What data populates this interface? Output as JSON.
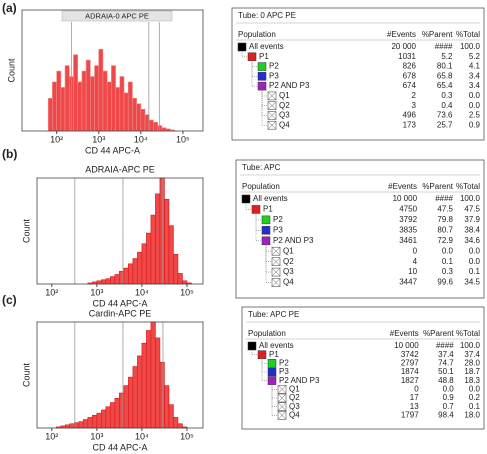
{
  "panel_labels": [
    "(a)",
    "(b)",
    "(c)"
  ],
  "chart_data": [
    {
      "type": "histogram",
      "title": "ADRAIA-0 APC PE",
      "xlabel": "CD 44 APC-A",
      "ylabel": "Count",
      "xscale": "log",
      "xlim": [
        15,
        300000
      ],
      "ylim": [
        0,
        100
      ],
      "xticks": [
        {
          "value": 100,
          "label": "10²"
        },
        {
          "value": 1000,
          "label": "10³"
        },
        {
          "value": 10000,
          "label": "10⁴"
        },
        {
          "value": 100000,
          "label": "10⁵"
        }
      ],
      "bins": [
        63,
        79,
        100,
        126,
        158,
        200,
        251,
        316,
        398,
        501,
        631,
        794,
        1000,
        1259,
        1585,
        1995,
        2512,
        3162,
        3981,
        5012,
        6310,
        7943,
        10000,
        12589,
        15849,
        19953,
        25119,
        31623,
        39811,
        50119,
        63096,
        79433,
        100000,
        125893,
        158489
      ],
      "counts": [
        30,
        45,
        55,
        40,
        60,
        50,
        70,
        45,
        55,
        65,
        50,
        60,
        75,
        55,
        45,
        60,
        40,
        50,
        35,
        45,
        30,
        25,
        20,
        15,
        10,
        8,
        5,
        3,
        2,
        1,
        0,
        0,
        0,
        0
      ],
      "color": "#f04848",
      "edge_color": "#f08a8a",
      "vlines": [
        224,
        15500,
        27500
      ]
    },
    {
      "type": "histogram",
      "title": "ADRAIA-APC PE",
      "xlabel": "CD 44 APC-A",
      "ylabel": "Count",
      "xscale": "log",
      "xlim": [
        47,
        227000
      ],
      "ylim": [
        0,
        100
      ],
      "xticks": [
        {
          "value": 100,
          "label": "10²"
        },
        {
          "value": 1000,
          "label": "10³"
        },
        {
          "value": 10000,
          "label": "10⁴"
        },
        {
          "value": 100000,
          "label": "10⁵"
        }
      ],
      "bins": [
        63,
        79,
        100,
        126,
        158,
        200,
        251,
        316,
        398,
        501,
        631,
        794,
        1000,
        1259,
        1585,
        1995,
        2512,
        3162,
        3981,
        5012,
        6310,
        7943,
        10000,
        12589,
        15849,
        19953,
        25119,
        31623,
        39811,
        50119,
        63096,
        79433,
        100000,
        125893,
        158489
      ],
      "counts": [
        0,
        0,
        0,
        0,
        0,
        0,
        0,
        0,
        0,
        0,
        1,
        2,
        3,
        4,
        5,
        7,
        9,
        12,
        15,
        19,
        24,
        30,
        38,
        48,
        65,
        85,
        100,
        80,
        55,
        28,
        10,
        3,
        1,
        0
      ],
      "color": "#f04848",
      "edge_color": "#d81818",
      "vlines": [
        325,
        3800,
        29300
      ]
    },
    {
      "type": "histogram",
      "title": "Cardin-APC PE",
      "xlabel": "CD 44 APC-A",
      "ylabel": "Count",
      "xscale": "log",
      "xlim": [
        47,
        227000
      ],
      "ylim": [
        0,
        100
      ],
      "xticks": [
        {
          "value": 100,
          "label": "10²"
        },
        {
          "value": 1000,
          "label": "10³"
        },
        {
          "value": 10000,
          "label": "10⁴"
        },
        {
          "value": 100000,
          "label": "10⁵"
        }
      ],
      "bins": [
        63,
        79,
        100,
        126,
        158,
        200,
        251,
        316,
        398,
        501,
        631,
        794,
        1000,
        1259,
        1585,
        1995,
        2512,
        3162,
        3981,
        5012,
        6310,
        7943,
        10000,
        12589,
        15849,
        19953,
        25119,
        31623,
        39811,
        50119,
        63096,
        79433,
        100000,
        125893,
        158489
      ],
      "counts": [
        0,
        0,
        0,
        1,
        2,
        3,
        4,
        5,
        6,
        8,
        10,
        12,
        14,
        17,
        20,
        24,
        28,
        33,
        40,
        48,
        58,
        68,
        80,
        92,
        100,
        85,
        62,
        40,
        22,
        10,
        4,
        1,
        0,
        0
      ],
      "color": "#f04848",
      "edge_color": "#d81818",
      "vlines": [
        325,
        3800,
        29300
      ]
    }
  ],
  "tables": [
    {
      "tube": "Tube:  0 APC PE",
      "columns": [
        "Population",
        "#Events",
        "%Parent",
        "%Total"
      ],
      "tree": {
        "name": "All events",
        "events": "20 000",
        "parent": "####",
        "total": "100.0",
        "color": "#000000",
        "children": [
          {
            "name": "P1",
            "events": "1031",
            "parent": "5.2",
            "total": "5.2",
            "color": "#e02020",
            "children": [
              {
                "name": "P2",
                "events": "826",
                "parent": "80.1",
                "total": "4.1",
                "color": "#20d020"
              },
              {
                "name": "P3",
                "events": "678",
                "parent": "65.8",
                "total": "3.4",
                "color": "#2030d0"
              },
              {
                "name": "P2 AND P3",
                "events": "674",
                "parent": "65.4",
                "total": "3.4",
                "color": "#a020c0",
                "children": [
                  {
                    "name": "Q1",
                    "events": "2",
                    "parent": "0.3",
                    "total": "0.0"
                  },
                  {
                    "name": "Q2",
                    "events": "3",
                    "parent": "0.4",
                    "total": "0.0"
                  },
                  {
                    "name": "Q3",
                    "events": "496",
                    "parent": "73.6",
                    "total": "2.5"
                  },
                  {
                    "name": "Q4",
                    "events": "173",
                    "parent": "25.7",
                    "total": "0.9"
                  }
                ]
              }
            ]
          }
        ]
      }
    },
    {
      "tube": "Tube:  APC",
      "columns": [
        "Population",
        "#Events",
        "%Parent",
        "%Total"
      ],
      "tree": {
        "name": "All events",
        "events": "10 000",
        "parent": "####",
        "total": "100.0",
        "color": "#000000",
        "children": [
          {
            "name": "P1",
            "events": "4750",
            "parent": "47.5",
            "total": "47.5",
            "color": "#e02020",
            "children": [
              {
                "name": "P2",
                "events": "3792",
                "parent": "79.8",
                "total": "37.9",
                "color": "#20d020"
              },
              {
                "name": "P3",
                "events": "3835",
                "parent": "80.7",
                "total": "38.4",
                "color": "#2030d0"
              },
              {
                "name": "P2 AND P3",
                "events": "3461",
                "parent": "72.9",
                "total": "34.6",
                "color": "#a020c0",
                "children": [
                  {
                    "name": "Q1",
                    "events": "0",
                    "parent": "0.0",
                    "total": "0.0"
                  },
                  {
                    "name": "Q2",
                    "events": "4",
                    "parent": "0.1",
                    "total": "0.0"
                  },
                  {
                    "name": "Q3",
                    "events": "10",
                    "parent": "0.3",
                    "total": "0.1"
                  },
                  {
                    "name": "Q4",
                    "events": "3447",
                    "parent": "99.6",
                    "total": "34.5"
                  }
                ]
              }
            ]
          }
        ]
      }
    },
    {
      "tube": "Tube:  APC PE",
      "columns": [
        "Population",
        "#Events",
        "%Parent",
        "%Total"
      ],
      "tree": {
        "name": "All events",
        "events": "10 000",
        "parent": "####",
        "total": "100.0",
        "color": "#000000",
        "children": [
          {
            "name": "P1",
            "events": "3742",
            "parent": "37.4",
            "total": "37.4",
            "color": "#e02020",
            "children": [
              {
                "name": "P2",
                "events": "2797",
                "parent": "74.7",
                "total": "28.0",
                "color": "#20d020"
              },
              {
                "name": "P3",
                "events": "1874",
                "parent": "50.1",
                "total": "18.7",
                "color": "#2030d0"
              },
              {
                "name": "P2 AND P3",
                "events": "1827",
                "parent": "48.8",
                "total": "18.3",
                "color": "#a020c0",
                "children": [
                  {
                    "name": "Q1",
                    "events": "0",
                    "parent": "0.0",
                    "total": "0.0"
                  },
                  {
                    "name": "Q2",
                    "events": "17",
                    "parent": "0.9",
                    "total": "0.2"
                  },
                  {
                    "name": "Q3",
                    "events": "13",
                    "parent": "0.7",
                    "total": "0.1"
                  },
                  {
                    "name": "Q4",
                    "events": "1797",
                    "parent": "98.4",
                    "total": "18.0"
                  }
                ]
              }
            ]
          }
        ]
      }
    }
  ]
}
